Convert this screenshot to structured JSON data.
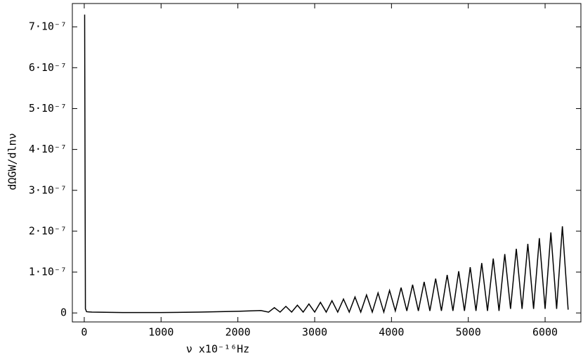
{
  "chart_data": {
    "type": "line",
    "x_label": "ν x10⁻¹⁶Hz",
    "y_label": "dΩGW/dlnν",
    "xlim": [
      -155,
      6466
    ],
    "ylim": [
      -2.2e-08,
      7.57e-07
    ],
    "xticks": [
      0,
      1000,
      2000,
      3000,
      4000,
      5000,
      6000
    ],
    "yticks": [
      0,
      {
        "value": 1e-07,
        "label": "1·10⁻⁷"
      },
      {
        "value": 2e-07,
        "label": "2·10⁻⁷"
      },
      {
        "value": 3e-07,
        "label": "3·10⁻⁷"
      },
      {
        "value": 4e-07,
        "label": "4·10⁻⁷"
      },
      {
        "value": 5e-07,
        "label": "5·10⁻⁷"
      },
      {
        "value": 6e-07,
        "label": "6·10⁻⁷"
      },
      {
        "value": 7e-07,
        "label": "7·10⁻⁷"
      }
    ],
    "series": [
      {
        "color": "#000000",
        "x": [
          5,
          15,
          30,
          100,
          500,
          1000,
          1500,
          2000,
          2300,
          2400,
          2475,
          2550,
          2625,
          2700,
          2775,
          2850,
          2925,
          3000,
          3075,
          3150,
          3225,
          3300,
          3375,
          3450,
          3525,
          3600,
          3675,
          3750,
          3825,
          3900,
          3975,
          4050,
          4125,
          4200,
          4275,
          4350,
          4425,
          4500,
          4575,
          4650,
          4725,
          4800,
          4875,
          4950,
          5025,
          5100,
          5175,
          5250,
          5325,
          5400,
          5475,
          5550,
          5625,
          5700,
          5775,
          5850,
          5925,
          6000,
          6075,
          6150,
          6225,
          6300
        ],
        "values": [
          7.3e-07,
          1e-08,
          3e-09,
          2e-09,
          1e-09,
          1e-09,
          2e-09,
          4e-09,
          6e-09,
          2e-09,
          1.3e-08,
          2e-09,
          1.6e-08,
          2e-09,
          1.9e-08,
          2e-09,
          2.2e-08,
          2e-09,
          2.6e-08,
          2e-09,
          3e-08,
          2e-09,
          3.4e-08,
          2e-09,
          3.9e-08,
          2e-09,
          4.4e-08,
          2e-09,
          4.9e-08,
          2e-09,
          5.5e-08,
          5e-09,
          6.2e-08,
          5e-09,
          6.9e-08,
          5e-09,
          7.6e-08,
          5e-09,
          8.4e-08,
          5e-09,
          9.3e-08,
          5e-09,
          1.02e-07,
          5e-09,
          1.12e-07,
          5e-09,
          1.22e-07,
          5e-09,
          1.33e-07,
          5e-09,
          1.44e-07,
          1e-08,
          1.57e-07,
          1e-08,
          1.69e-07,
          1e-08,
          1.83e-07,
          1e-08,
          1.97e-07,
          1e-08,
          2.12e-07,
          8e-09
        ]
      }
    ]
  }
}
